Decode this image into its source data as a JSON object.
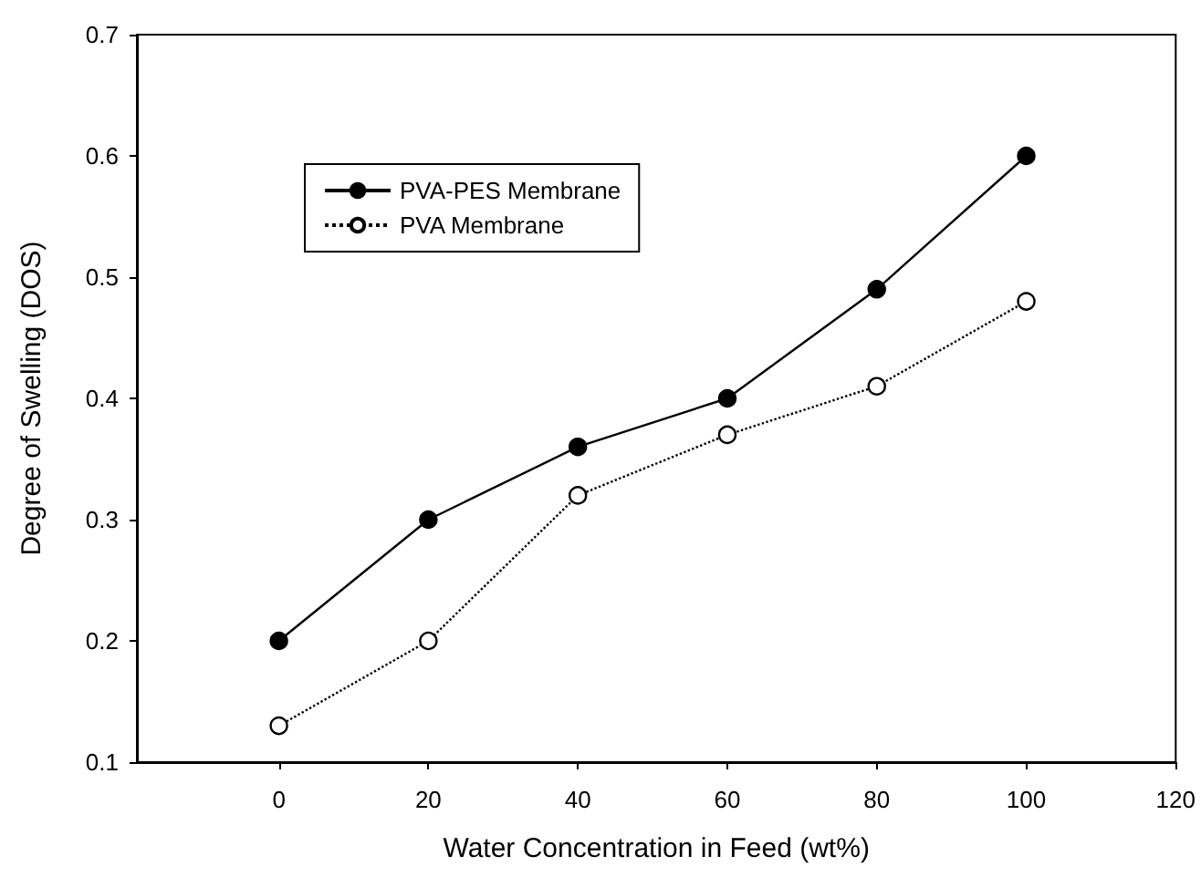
{
  "chart_data": {
    "type": "line",
    "xlabel": "Water Concentration in Feed (wt%)",
    "ylabel": "Degree of Swelling (DOS)",
    "x": [
      0,
      20,
      40,
      60,
      80,
      100
    ],
    "series": [
      {
        "name": "PVA-PES Membrane",
        "color": "#000000",
        "values": [
          0.2,
          0.3,
          0.36,
          0.4,
          0.49,
          0.6
        ],
        "marker": "circle",
        "line_style": "solid"
      },
      {
        "name": "PVA Membrane",
        "color": "#000000",
        "values": [
          0.13,
          0.2,
          0.32,
          0.37,
          0.41,
          0.48
        ],
        "marker": "circle",
        "line_style": "dotted"
      }
    ],
    "xlim": [
      -19,
      120
    ],
    "xticks": [
      0,
      20,
      40,
      60,
      80,
      100,
      120
    ],
    "ylim": [
      0.1,
      0.7
    ],
    "yticks": [
      0.1,
      0.2,
      0.3,
      0.4,
      0.5,
      0.6,
      0.7
    ],
    "grid": false,
    "legend": "top left"
  }
}
